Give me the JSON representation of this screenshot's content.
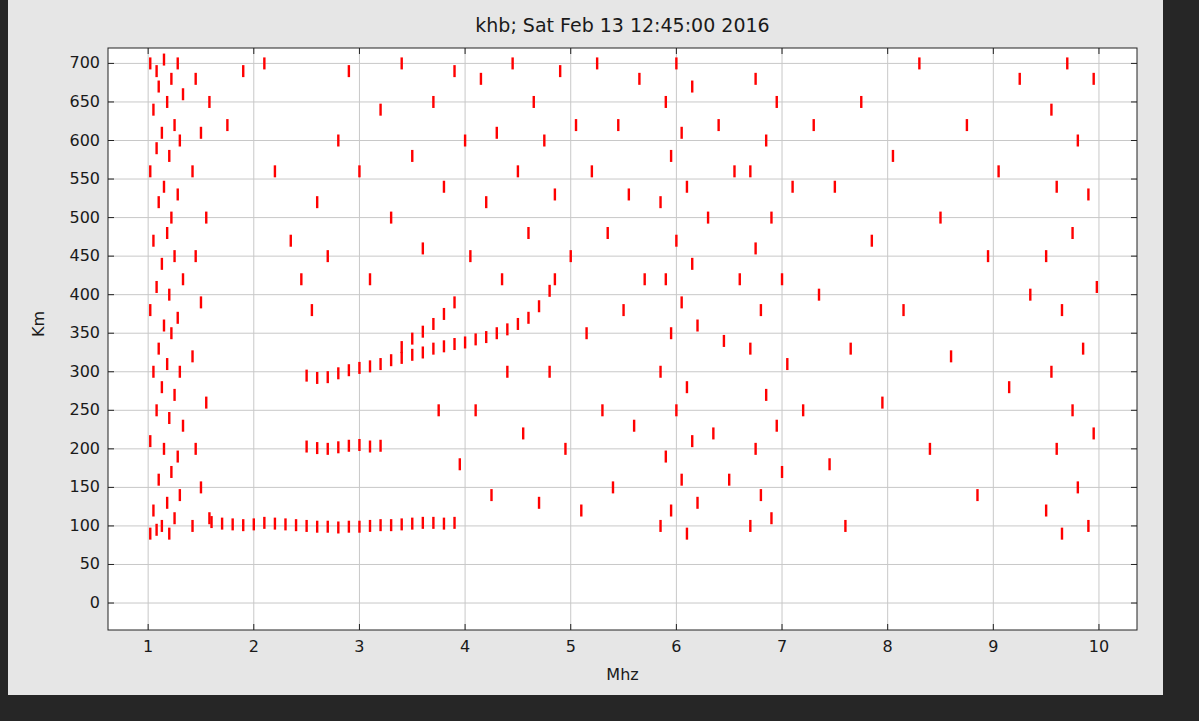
{
  "chart_data": {
    "type": "scatter",
    "title": "khb; Sat Feb 13 12:45:00 2016",
    "x_label": "Mhz",
    "y_label": "Km",
    "xlim": [
      0.62,
      10.36
    ],
    "ylim": [
      -35,
      720
    ],
    "xticks": [
      1,
      2,
      3,
      4,
      5,
      6,
      7,
      8,
      9,
      10
    ],
    "yticks": [
      0,
      50,
      100,
      150,
      200,
      250,
      300,
      350,
      400,
      450,
      500,
      550,
      600,
      650,
      700
    ],
    "grid": true,
    "marker": "dash",
    "color": "#ff0000",
    "series": [
      {
        "color": "#ff0000",
        "x": [
          1.6,
          1.7,
          1.8,
          1.9,
          2.0,
          2.1,
          2.2,
          2.3,
          2.4,
          2.5,
          2.6,
          2.7,
          2.8,
          2.9,
          3.0,
          3.1,
          3.2,
          3.3,
          3.4,
          3.5,
          3.6,
          3.7,
          3.8,
          3.9
        ],
        "values": [
          105,
          103,
          102,
          101,
          102,
          104,
          103,
          102,
          101,
          100,
          99,
          99,
          98,
          99,
          99,
          100,
          101,
          101,
          102,
          103,
          104,
          104,
          103,
          104
        ]
      },
      {
        "color": "#ff0000",
        "x": [
          2.5,
          2.6,
          2.7,
          2.8,
          2.9,
          3.0,
          3.1,
          3.2
        ],
        "values": [
          203,
          201,
          200,
          202,
          204,
          205,
          203,
          204
        ]
      },
      {
        "color": "#ff0000",
        "x": [
          2.5,
          2.6,
          2.7,
          2.8,
          2.9,
          3.0,
          3.1,
          3.2,
          3.3,
          3.4,
          3.5,
          3.6,
          3.7,
          3.8,
          3.9,
          4.0,
          4.1,
          4.2,
          4.3,
          4.4,
          4.5,
          4.6,
          4.7,
          4.8,
          4.85
        ],
        "values": [
          295,
          292,
          293,
          298,
          302,
          305,
          307,
          310,
          315,
          318,
          322,
          325,
          330,
          333,
          336,
          338,
          342,
          345,
          350,
          355,
          362,
          370,
          385,
          405,
          420
        ]
      },
      {
        "color": "#ff0000",
        "x": [
          3.4,
          3.5,
          3.6,
          3.7,
          3.8,
          3.9
        ],
        "values": [
          332,
          343,
          352,
          362,
          375,
          390
        ]
      },
      {
        "color": "#ff0000",
        "x": [
          1.02,
          1.02,
          1.02,
          1.02,
          1.02,
          1.05,
          1.05,
          1.05,
          1.05,
          1.08,
          1.08,
          1.08,
          1.08,
          1.08,
          1.1,
          1.1,
          1.1,
          1.1,
          1.13,
          1.13,
          1.13,
          1.13,
          1.15,
          1.15,
          1.15,
          1.15,
          1.18,
          1.18,
          1.18,
          1.18,
          1.2,
          1.2,
          1.2,
          1.2,
          1.22,
          1.22,
          1.22,
          1.22,
          1.25,
          1.25,
          1.25,
          1.25,
          1.28,
          1.28,
          1.28,
          1.28,
          1.3,
          1.3,
          1.3,
          1.33,
          1.33,
          1.33,
          1.42,
          1.42,
          1.42,
          1.45,
          1.45,
          1.45,
          1.5,
          1.5,
          1.5,
          1.55,
          1.55,
          1.58,
          1.58,
          1.75,
          1.9,
          2.1,
          2.2,
          2.35,
          2.45,
          2.55,
          2.6,
          2.7,
          2.8,
          2.9,
          3.0,
          3.1,
          3.2,
          3.3,
          3.4,
          3.5,
          3.6,
          3.7,
          3.75,
          3.8,
          3.9,
          3.95,
          4.0,
          4.05,
          4.1,
          4.15,
          4.2,
          4.25,
          4.3,
          4.35,
          4.4,
          4.45,
          4.5,
          4.55,
          4.6,
          4.65,
          4.7,
          4.75,
          4.8,
          4.85,
          4.9,
          4.95,
          5.0,
          5.05,
          5.1,
          5.15,
          5.2,
          5.25,
          5.3,
          5.35,
          5.4,
          5.45,
          5.5,
          5.55,
          5.6,
          5.65,
          5.7,
          5.85,
          5.85,
          5.85,
          5.9,
          5.9,
          5.9,
          5.95,
          5.95,
          5.95,
          6.0,
          6.0,
          6.0,
          6.05,
          6.05,
          6.05,
          6.1,
          6.1,
          6.1,
          6.15,
          6.15,
          6.15,
          6.2,
          6.2,
          6.3,
          6.35,
          6.4,
          6.45,
          6.5,
          6.55,
          6.6,
          6.7,
          6.7,
          6.7,
          6.75,
          6.75,
          6.75,
          6.8,
          6.8,
          6.85,
          6.85,
          6.9,
          6.9,
          6.95,
          6.95,
          7.0,
          7.0,
          7.05,
          7.1,
          7.2,
          7.3,
          7.35,
          7.45,
          7.5,
          7.6,
          7.65,
          7.75,
          7.85,
          7.95,
          8.05,
          8.15,
          8.3,
          8.4,
          8.5,
          8.6,
          8.75,
          8.85,
          8.95,
          9.05,
          9.15,
          9.25,
          9.35,
          9.5,
          9.5,
          9.55,
          9.55,
          9.6,
          9.6,
          9.65,
          9.65,
          9.7,
          9.75,
          9.75,
          9.8,
          9.8,
          9.85,
          9.9,
          9.9,
          9.95,
          9.95,
          9.98
        ],
        "values": [
          90,
          210,
          380,
          560,
          700,
          120,
          300,
          470,
          640,
          95,
          250,
          410,
          590,
          690,
          160,
          330,
          520,
          670,
          100,
          280,
          440,
          610,
          200,
          360,
          540,
          705,
          130,
          310,
          480,
          650,
          90,
          240,
          400,
          580,
          170,
          350,
          500,
          680,
          110,
          270,
          450,
          620,
          190,
          370,
          530,
          700,
          140,
          300,
          600,
          230,
          420,
          660,
          100,
          320,
          560,
          200,
          450,
          680,
          150,
          390,
          610,
          260,
          500,
          110,
          650,
          620,
          690,
          700,
          560,
          470,
          420,
          380,
          520,
          450,
          600,
          690,
          560,
          420,
          640,
          500,
          700,
          580,
          460,
          650,
          250,
          540,
          690,
          180,
          600,
          450,
          250,
          680,
          520,
          140,
          610,
          420,
          300,
          700,
          560,
          220,
          480,
          650,
          130,
          600,
          300,
          530,
          690,
          200,
          450,
          620,
          120,
          350,
          560,
          700,
          250,
          480,
          150,
          620,
          380,
          530,
          230,
          680,
          420,
          100,
          300,
          520,
          190,
          420,
          650,
          120,
          350,
          580,
          250,
          470,
          700,
          160,
          390,
          610,
          90,
          280,
          540,
          210,
          440,
          670,
          130,
          360,
          500,
          220,
          620,
          340,
          160,
          560,
          420,
          100,
          330,
          560,
          200,
          460,
          680,
          140,
          380,
          270,
          600,
          110,
          500,
          230,
          650,
          170,
          420,
          310,
          540,
          250,
          620,
          400,
          180,
          540,
          100,
          330,
          650,
          470,
          260,
          580,
          380,
          700,
          200,
          500,
          320,
          620,
          140,
          450,
          560,
          280,
          680,
          400,
          120,
          450,
          300,
          640,
          200,
          540,
          90,
          380,
          700,
          250,
          480,
          150,
          600,
          330,
          100,
          530,
          220,
          680,
          410
        ]
      }
    ]
  }
}
